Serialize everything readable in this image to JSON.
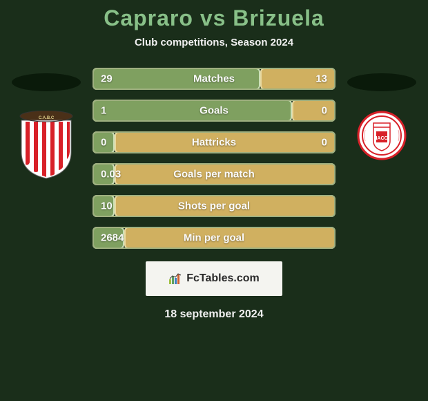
{
  "colors": {
    "background": "#1a2e1a",
    "title": "#88c088",
    "text_light": "#f0f0f0",
    "bar_left_fill": "#7fa060",
    "bar_left_border": "#cde0b8",
    "bar_right_fill": "#d0b060",
    "bar_right_border": "#e8d8a0",
    "bar_outline": "#9fb080",
    "logo_bg": "#f4f4f0",
    "logo_text": "#2a2a2a"
  },
  "header": {
    "title": "Capraro vs Brizuela",
    "subtitle": "Club competitions, Season 2024"
  },
  "left_player": {
    "crest_stripes": "#d82028",
    "crest_bg": "#ffffff"
  },
  "right_player": {
    "crest_red": "#d82028",
    "crest_white": "#ffffff"
  },
  "bars": [
    {
      "label": "Matches",
      "left_value": "29",
      "right_value": "13",
      "left_pct": 69,
      "right_pct": 31
    },
    {
      "label": "Goals",
      "left_value": "1",
      "right_value": "0",
      "left_pct": 82,
      "right_pct": 18
    },
    {
      "label": "Hattricks",
      "left_value": "0",
      "right_value": "0",
      "left_pct": 9,
      "right_pct": 91
    },
    {
      "label": "Goals per match",
      "left_value": "0.03",
      "right_value": "",
      "left_pct": 9,
      "right_pct": 91
    },
    {
      "label": "Shots per goal",
      "left_value": "10",
      "right_value": "",
      "left_pct": 9,
      "right_pct": 91
    },
    {
      "label": "Min per goal",
      "left_value": "2684",
      "right_value": "",
      "left_pct": 13,
      "right_pct": 87
    }
  ],
  "footer": {
    "logo_text": "FcTables.com",
    "date": "18 september 2024"
  }
}
